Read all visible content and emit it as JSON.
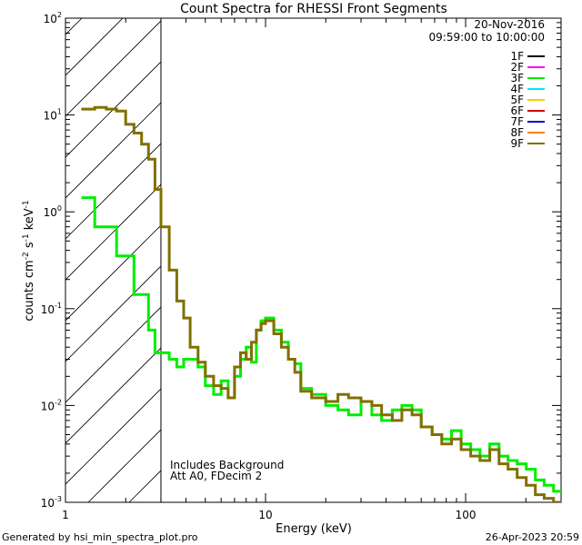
{
  "footer": {
    "generated_by": "Generated by hsi_min_spectra_plot.pro",
    "timestamp": "26-Apr-2023 20:59"
  },
  "chart_data": {
    "type": "line",
    "title": "Count Spectra for RHESSI Front Segments",
    "xlabel": "Energy (keV)",
    "ylabel": "counts cm",
    "ylabel_parts": {
      "base1": "counts cm",
      "sup1": "-2",
      "base2": " s",
      "sup2": "-1",
      "base3": " keV",
      "sup3": "-1"
    },
    "xscale": "log",
    "yscale": "log",
    "xlim": [
      1,
      300
    ],
    "ylim": [
      0.001,
      100
    ],
    "x_ticks": [
      {
        "value": 1,
        "label": "1"
      },
      {
        "value": 10,
        "label": "10"
      },
      {
        "value": 100,
        "label": "100"
      }
    ],
    "y_ticks": [
      {
        "value": 0.001,
        "base": "10",
        "exp": "-3"
      },
      {
        "value": 0.01,
        "base": "10",
        "exp": "-2"
      },
      {
        "value": 0.1,
        "base": "10",
        "exp": "-1"
      },
      {
        "value": 1,
        "base": "10",
        "exp": "0"
      },
      {
        "value": 10,
        "base": "10",
        "exp": "1"
      },
      {
        "value": 100,
        "base": "10",
        "exp": "2"
      }
    ],
    "date": "20-Nov-2016",
    "time_range": "09:59:00 to 10:00:00",
    "excluded_region_keV": [
      1,
      3
    ],
    "annotations": [
      "Includes Background",
      "Att A0, FDecim 2"
    ],
    "legend": [
      {
        "name": "1F",
        "color": "#000000"
      },
      {
        "name": "2F",
        "color": "#ff00ff"
      },
      {
        "name": "3F",
        "color": "#00ee00"
      },
      {
        "name": "4F",
        "color": "#00e5ff"
      },
      {
        "name": "5F",
        "color": "#ffcc00"
      },
      {
        "name": "6F",
        "color": "#cc0000"
      },
      {
        "name": "7F",
        "color": "#0000cc"
      },
      {
        "name": "8F",
        "color": "#ff8000"
      },
      {
        "name": "9F",
        "color": "#807000"
      }
    ],
    "series": [
      {
        "name": "3F",
        "color": "#00ee00",
        "edges": [
          1.2,
          1.4,
          1.6,
          1.8,
          2.0,
          2.2,
          2.4,
          2.6,
          2.8,
          3.0,
          3.3,
          3.6,
          3.9,
          4.2,
          4.6,
          5.0,
          5.5,
          6.0,
          6.5,
          7.0,
          7.5,
          8.0,
          8.5,
          9.0,
          9.5,
          10.0,
          11.0,
          12.0,
          13.0,
          14.0,
          15.0,
          17.0,
          20.0,
          23.0,
          26.0,
          30.0,
          34.0,
          38.0,
          43.0,
          48.0,
          54.0,
          60.0,
          68.0,
          76.0,
          85.0,
          95.0,
          106.0,
          118.0,
          132.0,
          147.0,
          163.0,
          181.0,
          201.0,
          223.0,
          247.0,
          275.0,
          300.0
        ],
        "values": [
          1.4,
          0.7,
          0.7,
          0.35,
          0.35,
          0.14,
          0.14,
          0.06,
          0.035,
          0.035,
          0.03,
          0.025,
          0.03,
          0.03,
          0.025,
          0.016,
          0.013,
          0.018,
          0.012,
          0.02,
          0.03,
          0.04,
          0.028,
          0.06,
          0.075,
          0.08,
          0.06,
          0.045,
          0.03,
          0.027,
          0.015,
          0.013,
          0.01,
          0.009,
          0.008,
          0.011,
          0.008,
          0.007,
          0.009,
          0.01,
          0.009,
          0.006,
          0.005,
          0.0045,
          0.0055,
          0.004,
          0.0035,
          0.003,
          0.004,
          0.003,
          0.0027,
          0.0025,
          0.0022,
          0.0017,
          0.0015,
          0.0013
        ]
      },
      {
        "name": "9F",
        "color": "#807000",
        "edges": [
          1.2,
          1.4,
          1.6,
          1.8,
          2.0,
          2.2,
          2.4,
          2.6,
          2.8,
          3.0,
          3.3,
          3.6,
          3.9,
          4.2,
          4.6,
          5.0,
          5.5,
          6.0,
          6.5,
          7.0,
          7.5,
          8.0,
          8.5,
          9.0,
          9.5,
          10.0,
          11.0,
          12.0,
          13.0,
          14.0,
          15.0,
          17.0,
          20.0,
          23.0,
          26.0,
          30.0,
          34.0,
          38.0,
          43.0,
          48.0,
          54.0,
          60.0,
          68.0,
          76.0,
          85.0,
          95.0,
          106.0,
          118.0,
          132.0,
          147.0,
          163.0,
          181.0,
          201.0,
          223.0,
          247.0,
          275.0,
          300.0
        ],
        "values": [
          11.5,
          12.0,
          11.5,
          11.0,
          8.0,
          6.5,
          5.0,
          3.5,
          1.7,
          0.7,
          0.25,
          0.12,
          0.08,
          0.04,
          0.028,
          0.02,
          0.016,
          0.015,
          0.012,
          0.025,
          0.035,
          0.03,
          0.045,
          0.06,
          0.07,
          0.075,
          0.055,
          0.04,
          0.03,
          0.022,
          0.014,
          0.012,
          0.011,
          0.013,
          0.012,
          0.011,
          0.01,
          0.008,
          0.007,
          0.009,
          0.008,
          0.006,
          0.005,
          0.004,
          0.0045,
          0.0035,
          0.003,
          0.0027,
          0.0035,
          0.0025,
          0.0022,
          0.0018,
          0.0015,
          0.0012,
          0.0011,
          0.001
        ]
      }
    ]
  }
}
